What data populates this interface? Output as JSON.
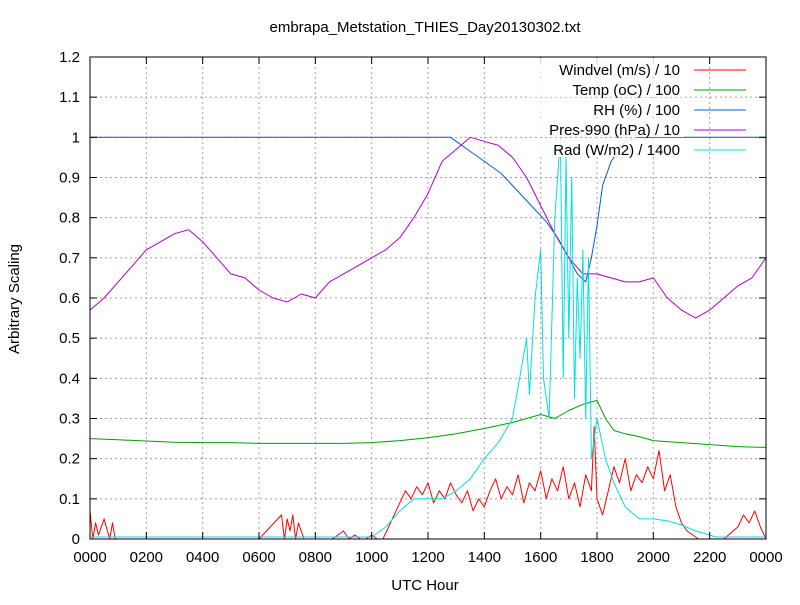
{
  "chart_data": {
    "type": "line",
    "title": "embrapa_Metstation_THIES_Day20130302.txt",
    "xlabel": "UTC Hour",
    "ylabel": "Arbitrary Scaling",
    "xlim": [
      0,
      24
    ],
    "ylim": [
      0,
      1.2
    ],
    "grid": true,
    "legend_position": "top-right",
    "x_ticks": [
      {
        "value": 0,
        "label": "0000"
      },
      {
        "value": 2,
        "label": "0200"
      },
      {
        "value": 4,
        "label": "0400"
      },
      {
        "value": 6,
        "label": "0600"
      },
      {
        "value": 8,
        "label": "0800"
      },
      {
        "value": 10,
        "label": "1000"
      },
      {
        "value": 12,
        "label": "1200"
      },
      {
        "value": 14,
        "label": "1400"
      },
      {
        "value": 16,
        "label": "1600"
      },
      {
        "value": 18,
        "label": "1800"
      },
      {
        "value": 20,
        "label": "2000"
      },
      {
        "value": 22,
        "label": "2200"
      },
      {
        "value": 24,
        "label": "0000"
      }
    ],
    "y_ticks": [
      {
        "value": 0,
        "label": "0"
      },
      {
        "value": 0.1,
        "label": "0.1"
      },
      {
        "value": 0.2,
        "label": "0.2"
      },
      {
        "value": 0.3,
        "label": "0.3"
      },
      {
        "value": 0.4,
        "label": "0.4"
      },
      {
        "value": 0.5,
        "label": "0.5"
      },
      {
        "value": 0.6,
        "label": "0.6"
      },
      {
        "value": 0.7,
        "label": "0.7"
      },
      {
        "value": 0.8,
        "label": "0.8"
      },
      {
        "value": 0.9,
        "label": "0.9"
      },
      {
        "value": 1,
        "label": "1"
      },
      {
        "value": 1.1,
        "label": "1.1"
      },
      {
        "value": 1.2,
        "label": "1.2"
      }
    ],
    "series": [
      {
        "name": "Windvel (m/s) / 10",
        "color": "#ff0000",
        "x": [
          0,
          0.1,
          0.2,
          0.3,
          0.5,
          0.7,
          0.8,
          0.9,
          1.0,
          1.2,
          1.4,
          1.6,
          2.0,
          3.0,
          4.0,
          5.0,
          6.0,
          6.8,
          6.9,
          7.0,
          7.1,
          7.2,
          7.3,
          7.4,
          7.6,
          7.8,
          8.0,
          8.2,
          8.4,
          8.6,
          8.8,
          9.0,
          9.2,
          9.4,
          9.6,
          9.8,
          10.0,
          10.2,
          10.4,
          10.6,
          10.8,
          11.0,
          11.2,
          11.4,
          11.6,
          11.8,
          12.0,
          12.2,
          12.4,
          12.6,
          12.8,
          13.0,
          13.2,
          13.4,
          13.6,
          13.8,
          14.0,
          14.2,
          14.4,
          14.6,
          14.8,
          15.0,
          15.2,
          15.4,
          15.6,
          15.8,
          16.0,
          16.2,
          16.4,
          16.6,
          16.8,
          17.0,
          17.2,
          17.4,
          17.6,
          17.8,
          17.9,
          18.0,
          18.2,
          18.4,
          18.6,
          18.8,
          19.0,
          19.2,
          19.4,
          19.6,
          19.8,
          20.0,
          20.2,
          20.4,
          20.6,
          20.8,
          21.0,
          21.2,
          21.4,
          21.6,
          21.8,
          22.0,
          22.5,
          23.0,
          23.2,
          23.4,
          23.6,
          23.8,
          24.0
        ],
        "values": [
          0.07,
          0.0,
          0.04,
          0.01,
          0.05,
          0.0,
          0.04,
          0.0,
          0.0,
          0.0,
          0.0,
          0.0,
          0.0,
          0.0,
          0.0,
          0.0,
          0.0,
          0.06,
          0.0,
          0.05,
          0.02,
          0.06,
          0.0,
          0.04,
          0.0,
          0.0,
          0.0,
          0.0,
          0.0,
          0.0,
          0.01,
          0.02,
          0.0,
          0.01,
          0.0,
          0.0,
          0.01,
          0.0,
          0.0,
          0.03,
          0.06,
          0.09,
          0.12,
          0.1,
          0.13,
          0.11,
          0.14,
          0.09,
          0.12,
          0.1,
          0.14,
          0.11,
          0.09,
          0.12,
          0.07,
          0.1,
          0.08,
          0.12,
          0.15,
          0.1,
          0.13,
          0.11,
          0.16,
          0.09,
          0.14,
          0.12,
          0.17,
          0.1,
          0.15,
          0.12,
          0.18,
          0.1,
          0.14,
          0.08,
          0.16,
          0.12,
          0.28,
          0.1,
          0.06,
          0.12,
          0.18,
          0.14,
          0.2,
          0.12,
          0.16,
          0.14,
          0.18,
          0.15,
          0.22,
          0.12,
          0.16,
          0.08,
          0.04,
          0.02,
          0.01,
          0.0,
          0.0,
          0.0,
          0.0,
          0.03,
          0.06,
          0.04,
          0.07,
          0.03,
          0.0
        ]
      },
      {
        "name": "Temp (oC) / 100",
        "color": "#00a000",
        "x": [
          0,
          1,
          2,
          3,
          4,
          5,
          6,
          7,
          8,
          9,
          10,
          11,
          12,
          13,
          14,
          15,
          15.5,
          16,
          16.5,
          17,
          17.5,
          18,
          18.3,
          18.6,
          19,
          19.5,
          20,
          21,
          22,
          23,
          24
        ],
        "values": [
          0.25,
          0.247,
          0.244,
          0.241,
          0.24,
          0.24,
          0.238,
          0.238,
          0.238,
          0.238,
          0.24,
          0.245,
          0.252,
          0.262,
          0.275,
          0.29,
          0.3,
          0.31,
          0.3,
          0.32,
          0.335,
          0.345,
          0.3,
          0.27,
          0.262,
          0.255,
          0.245,
          0.24,
          0.235,
          0.23,
          0.228
        ]
      },
      {
        "name": "RH (%) / 100",
        "color": "#0060d0",
        "x": [
          0,
          12.8,
          13.0,
          13.4,
          13.8,
          14.2,
          14.6,
          15.0,
          15.4,
          15.8,
          16.2,
          16.6,
          17.0,
          17.3,
          17.6,
          17.8,
          18.0,
          18.2,
          18.5,
          18.8,
          19.0,
          19.5,
          24
        ],
        "values": [
          1.0,
          1.0,
          0.99,
          0.97,
          0.95,
          0.93,
          0.91,
          0.88,
          0.85,
          0.82,
          0.79,
          0.75,
          0.7,
          0.66,
          0.64,
          0.7,
          0.78,
          0.88,
          0.94,
          0.97,
          0.99,
          1.0,
          1.0
        ]
      },
      {
        "name": "Pres-990 (hPa) / 10",
        "color": "#b000d0",
        "x": [
          0,
          0.5,
          1.0,
          1.5,
          2.0,
          2.5,
          3.0,
          3.5,
          4.0,
          4.5,
          5.0,
          5.5,
          6.0,
          6.5,
          7.0,
          7.5,
          8.0,
          8.5,
          9.0,
          9.5,
          10.0,
          10.5,
          11.0,
          11.5,
          12.0,
          12.5,
          13.0,
          13.5,
          14.0,
          14.5,
          15.0,
          15.5,
          16.0,
          16.5,
          17.0,
          17.5,
          18.0,
          18.5,
          19.0,
          19.5,
          20.0,
          20.5,
          21.0,
          21.5,
          22.0,
          22.5,
          23.0,
          23.5,
          24.0
        ],
        "values": [
          0.57,
          0.6,
          0.64,
          0.68,
          0.72,
          0.74,
          0.76,
          0.77,
          0.74,
          0.7,
          0.66,
          0.65,
          0.62,
          0.6,
          0.59,
          0.61,
          0.6,
          0.64,
          0.66,
          0.68,
          0.7,
          0.72,
          0.75,
          0.8,
          0.86,
          0.94,
          0.97,
          1.0,
          0.99,
          0.98,
          0.95,
          0.9,
          0.83,
          0.76,
          0.7,
          0.66,
          0.66,
          0.65,
          0.64,
          0.64,
          0.65,
          0.6,
          0.57,
          0.55,
          0.57,
          0.6,
          0.63,
          0.65,
          0.7
        ]
      },
      {
        "name": "Rad (W/m2) / 1400",
        "color": "#00e0e0",
        "x": [
          0,
          10.0,
          10.5,
          11.0,
          11.5,
          12.0,
          12.5,
          13.0,
          13.5,
          14.0,
          14.5,
          15.0,
          15.3,
          15.5,
          15.6,
          15.8,
          16.0,
          16.1,
          16.3,
          16.5,
          16.7,
          16.8,
          16.9,
          17.0,
          17.1,
          17.2,
          17.3,
          17.4,
          17.5,
          17.6,
          17.7,
          17.8,
          18.0,
          18.3,
          18.6,
          19.0,
          19.5,
          20.0,
          20.5,
          21.0,
          21.5,
          22.0,
          22.2,
          24.0
        ],
        "values": [
          0.005,
          0.005,
          0.03,
          0.07,
          0.1,
          0.1,
          0.1,
          0.12,
          0.15,
          0.2,
          0.24,
          0.3,
          0.42,
          0.5,
          0.36,
          0.6,
          0.72,
          0.4,
          0.3,
          0.8,
          1.0,
          0.4,
          0.95,
          0.5,
          0.9,
          0.35,
          0.65,
          0.45,
          0.72,
          0.3,
          0.7,
          0.2,
          0.3,
          0.2,
          0.14,
          0.08,
          0.05,
          0.05,
          0.045,
          0.035,
          0.02,
          0.01,
          0.005,
          0.005
        ]
      }
    ]
  }
}
